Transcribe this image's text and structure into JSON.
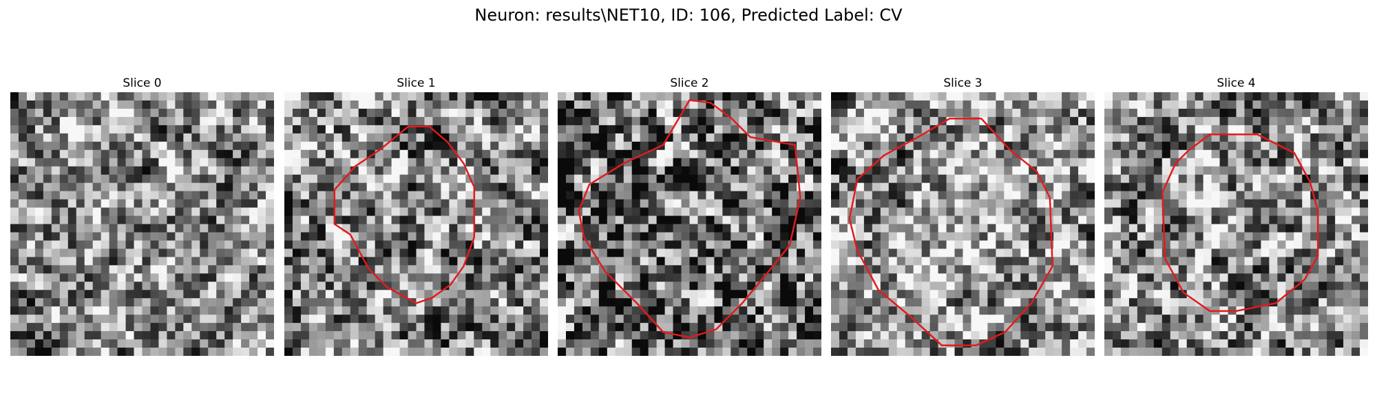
{
  "figure": {
    "title": "Neuron: results\\NET10, ID: 106, Predicted Label: CV"
  },
  "panels": [
    {
      "title": "Slice 0",
      "has_contour": false,
      "seed": 11,
      "contrast": 0.9,
      "mean": 0.55
    },
    {
      "title": "Slice 1",
      "has_contour": true,
      "seed": 23,
      "contrast": 1.0,
      "mean": 0.5
    },
    {
      "title": "Slice 2",
      "has_contour": true,
      "seed": 37,
      "contrast": 1.1,
      "mean": 0.42
    },
    {
      "title": "Slice 3",
      "has_contour": true,
      "seed": 41,
      "contrast": 0.95,
      "mean": 0.6
    },
    {
      "title": "Slice 4",
      "has_contour": true,
      "seed": 53,
      "contrast": 1.0,
      "mean": 0.55
    }
  ],
  "colors": {
    "contour": "#e31a1c"
  }
}
